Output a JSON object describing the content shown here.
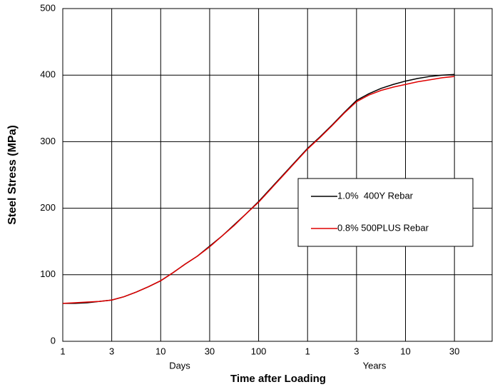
{
  "chart_data": {
    "type": "line",
    "xlabel": "Time after Loading",
    "ylabel": "Steel Stress (MPa)",
    "annotations": [
      "Days",
      "Years"
    ],
    "x": [
      0,
      0.25,
      0.5,
      0.75,
      1,
      1.25,
      1.5,
      1.75,
      2,
      2.25,
      2.5,
      2.75,
      3,
      3.25,
      3.5,
      3.75,
      4,
      4.25,
      4.5,
      4.75,
      5,
      5.25,
      5.5,
      5.75,
      6,
      6.25,
      6.5,
      6.75,
      7,
      7.25,
      7.5,
      7.75,
      8
    ],
    "series": [
      {
        "name": "1.0%  400Y Rebar",
        "color": "#000000",
        "values": [
          57,
          57,
          58,
          60,
          62,
          67,
          74,
          82,
          91,
          103,
          116,
          128,
          143,
          158,
          175,
          192,
          210,
          230,
          250,
          270,
          290,
          307,
          325,
          344,
          362,
          372,
          380,
          386,
          391,
          395,
          398,
          400,
          401
        ]
      },
      {
        "name": "0.8% 500PLUS Rebar",
        "color": "#e00000",
        "values": [
          57,
          58,
          59,
          60,
          62,
          67,
          74,
          82,
          91,
          103,
          116,
          128,
          142,
          158,
          174,
          192,
          209,
          229,
          249,
          269,
          289,
          306,
          324,
          343,
          360,
          370,
          377,
          382,
          386,
          390,
          393,
          396,
          398
        ]
      }
    ],
    "xlim": [
      0,
      8.77
    ],
    "xticks": [
      {
        "value": 0,
        "label": "1"
      },
      {
        "value": 1,
        "label": "3"
      },
      {
        "value": 2,
        "label": "10"
      },
      {
        "value": 3,
        "label": "30"
      },
      {
        "value": 4,
        "label": "100"
      },
      {
        "value": 5,
        "label": "1"
      },
      {
        "value": 6,
        "label": "3"
      },
      {
        "value": 7,
        "label": "10"
      },
      {
        "value": 8,
        "label": "30"
      }
    ],
    "ylim": [
      0,
      500
    ],
    "yticks": [
      0,
      100,
      200,
      300,
      400,
      500
    ],
    "grid": true,
    "legend": "right"
  }
}
